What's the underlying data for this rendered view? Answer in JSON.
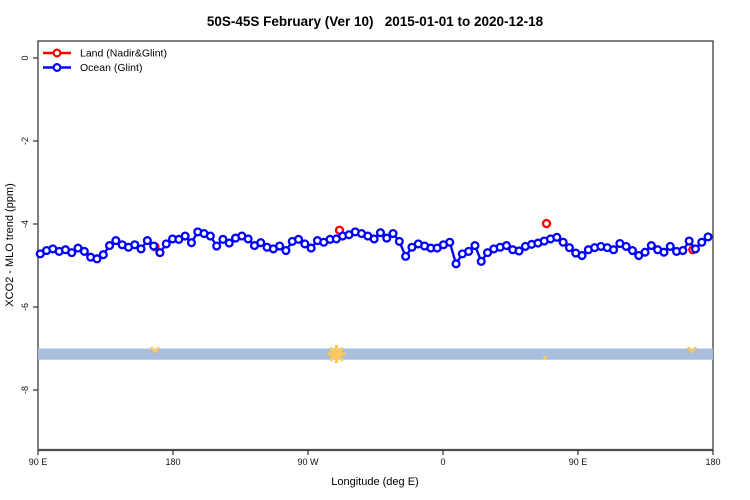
{
  "title": "50S-45S February (Ver 10)   2015-01-01 to 2020-12-18",
  "colors": {
    "background": "#ffffff",
    "land": "#ff0000",
    "ocean": "#0000ff",
    "band": "#a8bedd",
    "band_marks": "#fcc95e",
    "box": "#2b2b2b",
    "bottom_axis": "#4d4d4d"
  },
  "chart_data": {
    "type": "line",
    "title": "50S-45S February (Ver 10)   2015-01-01 to 2020-12-18",
    "xlabel": "Longitude (deg E)",
    "ylabel": "XCO2 - MLO trend (ppm)",
    "grid": false,
    "legend_position": "top-left",
    "legend": [
      {
        "label": "Land (Nadir&Glint)",
        "color": "#ff0000",
        "marker": "open-circle"
      },
      {
        "label": "Ocean (Glint)",
        "color": "#0000ff",
        "marker": "open-circle"
      }
    ],
    "x_axis": {
      "tick_labels": [
        "90 E",
        "180",
        "90 W",
        "0",
        "90 E",
        "180"
      ],
      "tick_lons": [
        90,
        180,
        270,
        360,
        450,
        540
      ],
      "range": [
        90,
        540
      ],
      "note": "longitude wraps eastward: 90E,180,90W,0,90E,180"
    },
    "y_axis": {
      "ticks": [
        0,
        -2,
        -4,
        -6,
        -8
      ],
      "range": [
        -9.45,
        0.42
      ]
    },
    "series": [
      {
        "name": "Ocean (Glint)",
        "color": "#0000ff",
        "x_start": 91.5,
        "x_step": 4.2,
        "values": [
          -4.72,
          -4.64,
          -4.6,
          -4.66,
          -4.62,
          -4.69,
          -4.58,
          -4.66,
          -4.8,
          -4.84,
          -4.74,
          -4.52,
          -4.4,
          -4.5,
          -4.56,
          -4.5,
          -4.6,
          -4.4,
          -4.53,
          -4.69,
          -4.48,
          -4.36,
          -4.37,
          -4.29,
          -4.45,
          -4.19,
          -4.23,
          -4.29,
          -4.53,
          -4.37,
          -4.46,
          -4.34,
          -4.29,
          -4.36,
          -4.52,
          -4.45,
          -4.56,
          -4.6,
          -4.53,
          -4.64,
          -4.42,
          -4.37,
          -4.48,
          -4.58,
          -4.4,
          -4.44,
          -4.37,
          -4.36,
          -4.29,
          -4.26,
          -4.19,
          -4.23,
          -4.29,
          -4.36,
          -4.21,
          -4.34,
          -4.23,
          -4.42,
          -4.78,
          -4.56,
          -4.48,
          -4.53,
          -4.58,
          -4.58,
          -4.5,
          -4.44,
          -4.96,
          -4.72,
          -4.66,
          -4.52,
          -4.9,
          -4.69,
          -4.6,
          -4.56,
          -4.52,
          -4.62,
          -4.65,
          -4.54,
          -4.49,
          -4.46,
          -4.41,
          -4.36,
          -4.32,
          -4.44,
          -4.57,
          -4.7,
          -4.76,
          -4.62,
          -4.57,
          -4.54,
          -4.57,
          -4.62,
          -4.47,
          -4.54,
          -4.64,
          -4.76,
          -4.68,
          -4.52,
          -4.62,
          -4.68,
          -4.54,
          -4.66,
          -4.64,
          -4.41,
          -4.6,
          -4.44,
          -4.31
        ]
      },
      {
        "name": "Land (Nadir&Glint)",
        "color": "#ff0000",
        "points": [
          {
            "lon": 168.0,
            "val": -4.55
          },
          {
            "lon": 291.0,
            "val": -4.15
          },
          {
            "lon": 429.0,
            "val": -3.99
          },
          {
            "lon": 526.5,
            "val": -4.62
          }
        ]
      }
    ],
    "band": {
      "color": "#a8bedd",
      "val_top": -7.0,
      "val_bottom": -7.27,
      "lon_range": [
        90,
        540
      ]
    },
    "band_marks": [
      {
        "lon": 168,
        "shape": "caret",
        "pos": "top"
      },
      {
        "lon": 289,
        "shape": "star",
        "pos": "center"
      },
      {
        "lon": 428,
        "shape": "dot",
        "pos": "bottom"
      },
      {
        "lon": 526,
        "shape": "caret",
        "pos": "top"
      }
    ]
  }
}
